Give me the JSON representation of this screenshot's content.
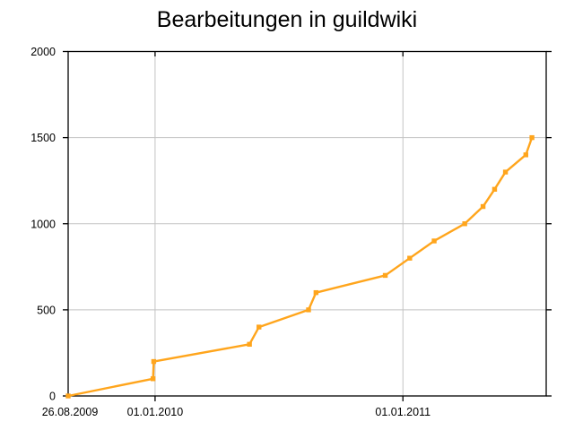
{
  "title": "Bearbeitungen in guildwiki",
  "chart_data": {
    "type": "line",
    "title": "Bearbeitungen in guildwiki",
    "xlabel": "",
    "ylabel": "",
    "legend_position": "none",
    "grid": true,
    "background_color": "#ffffff",
    "grid_color": "#c3c3c3",
    "frame_color": "#000000",
    "line_color": "#ffa51c",
    "marker": "square",
    "x_axis": {
      "type": "date",
      "min": "26.08.2009",
      "max": "31.07.2011",
      "tick_labels": [
        "26.08.2009",
        "01.01.2010",
        "01.01.2011"
      ],
      "gridline_dates": [
        "01.01.2010",
        "01.01.2011"
      ]
    },
    "y_axis": {
      "min": 0,
      "max": 2000,
      "ticks": [
        0,
        500,
        1000,
        1500,
        2000
      ],
      "gridlines": [
        500,
        1000,
        1500
      ]
    },
    "series": [
      {
        "name": "Bearbeitungen",
        "points": [
          {
            "date": "26.08.2009",
            "value": 0
          },
          {
            "date": "29.12.2009",
            "value": 100
          },
          {
            "date": "30.12.2009",
            "value": 200
          },
          {
            "date": "20.05.2010",
            "value": 300
          },
          {
            "date": "03.06.2010",
            "value": 400
          },
          {
            "date": "15.08.2010",
            "value": 500
          },
          {
            "date": "26.08.2010",
            "value": 600
          },
          {
            "date": "06.12.2010",
            "value": 700
          },
          {
            "date": "11.01.2011",
            "value": 800
          },
          {
            "date": "16.02.2011",
            "value": 900
          },
          {
            "date": "02.04.2011",
            "value": 1000
          },
          {
            "date": "29.04.2011",
            "value": 1100
          },
          {
            "date": "16.05.2011",
            "value": 1200
          },
          {
            "date": "01.06.2011",
            "value": 1300
          },
          {
            "date": "01.07.2011",
            "value": 1400
          },
          {
            "date": "10.07.2011",
            "value": 1500
          }
        ]
      }
    ]
  }
}
